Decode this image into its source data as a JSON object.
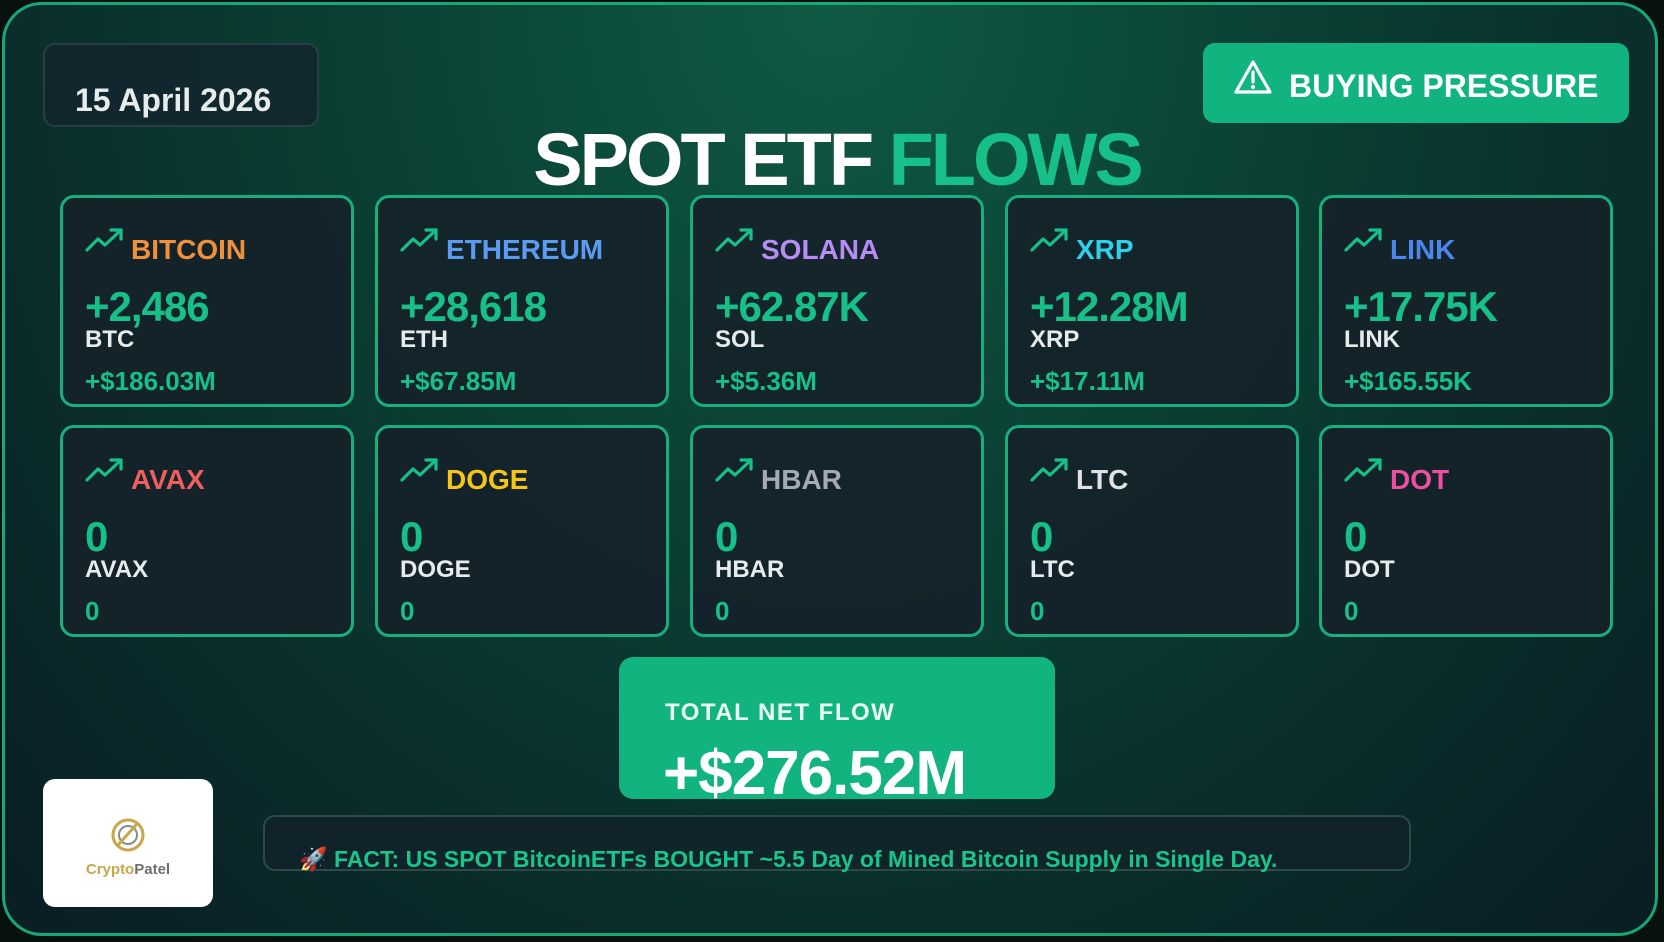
{
  "date": "15 April 2026",
  "status_badge": {
    "label": "BUYING PRESSURE",
    "icon": "warning-icon"
  },
  "title": {
    "part1": "SPOT ETF",
    "part2": "FLOWS"
  },
  "cards": [
    {
      "name": "BITCOIN",
      "color": "#f0913a",
      "amount": "+2,486",
      "ticker": "BTC",
      "usd": "+$186.03M"
    },
    {
      "name": "ETHEREUM",
      "color": "#5b9cf2",
      "amount": "+28,618",
      "ticker": "ETH",
      "usd": "+$67.85M"
    },
    {
      "name": "SOLANA",
      "color": "#b78cf5",
      "amount": "+62.87K",
      "ticker": "SOL",
      "usd": "+$5.36M"
    },
    {
      "name": "XRP",
      "color": "#2ed0ea",
      "amount": "+12.28M",
      "ticker": "XRP",
      "usd": "+$17.11M"
    },
    {
      "name": "LINK",
      "color": "#4a86f0",
      "amount": "+17.75K",
      "ticker": "LINK",
      "usd": "+$165.55K"
    },
    {
      "name": "AVAX",
      "color": "#ee5f5f",
      "amount": "0",
      "ticker": "AVAX",
      "usd": "0"
    },
    {
      "name": "DOGE",
      "color": "#f5c518",
      "amount": "0",
      "ticker": "DOGE",
      "usd": "0"
    },
    {
      "name": "HBAR",
      "color": "#a3aab3",
      "amount": "0",
      "ticker": "HBAR",
      "usd": "0"
    },
    {
      "name": "LTC",
      "color": "#dfe3e6",
      "amount": "0",
      "ticker": "LTC",
      "usd": "0"
    },
    {
      "name": "DOT",
      "color": "#ee4fa0",
      "amount": "0",
      "ticker": "DOT",
      "usd": "0"
    }
  ],
  "total": {
    "label": "TOTAL NET FLOW",
    "value": "+$276.52M"
  },
  "fact": {
    "emoji": "🚀",
    "text": "FACT: US SPOT BitcoinETFs BOUGHT ~5.5 Day of Mined Bitcoin Supply in Single Day."
  },
  "logo": {
    "brand_part1": "Crypto",
    "brand_part2": "Patel"
  }
}
